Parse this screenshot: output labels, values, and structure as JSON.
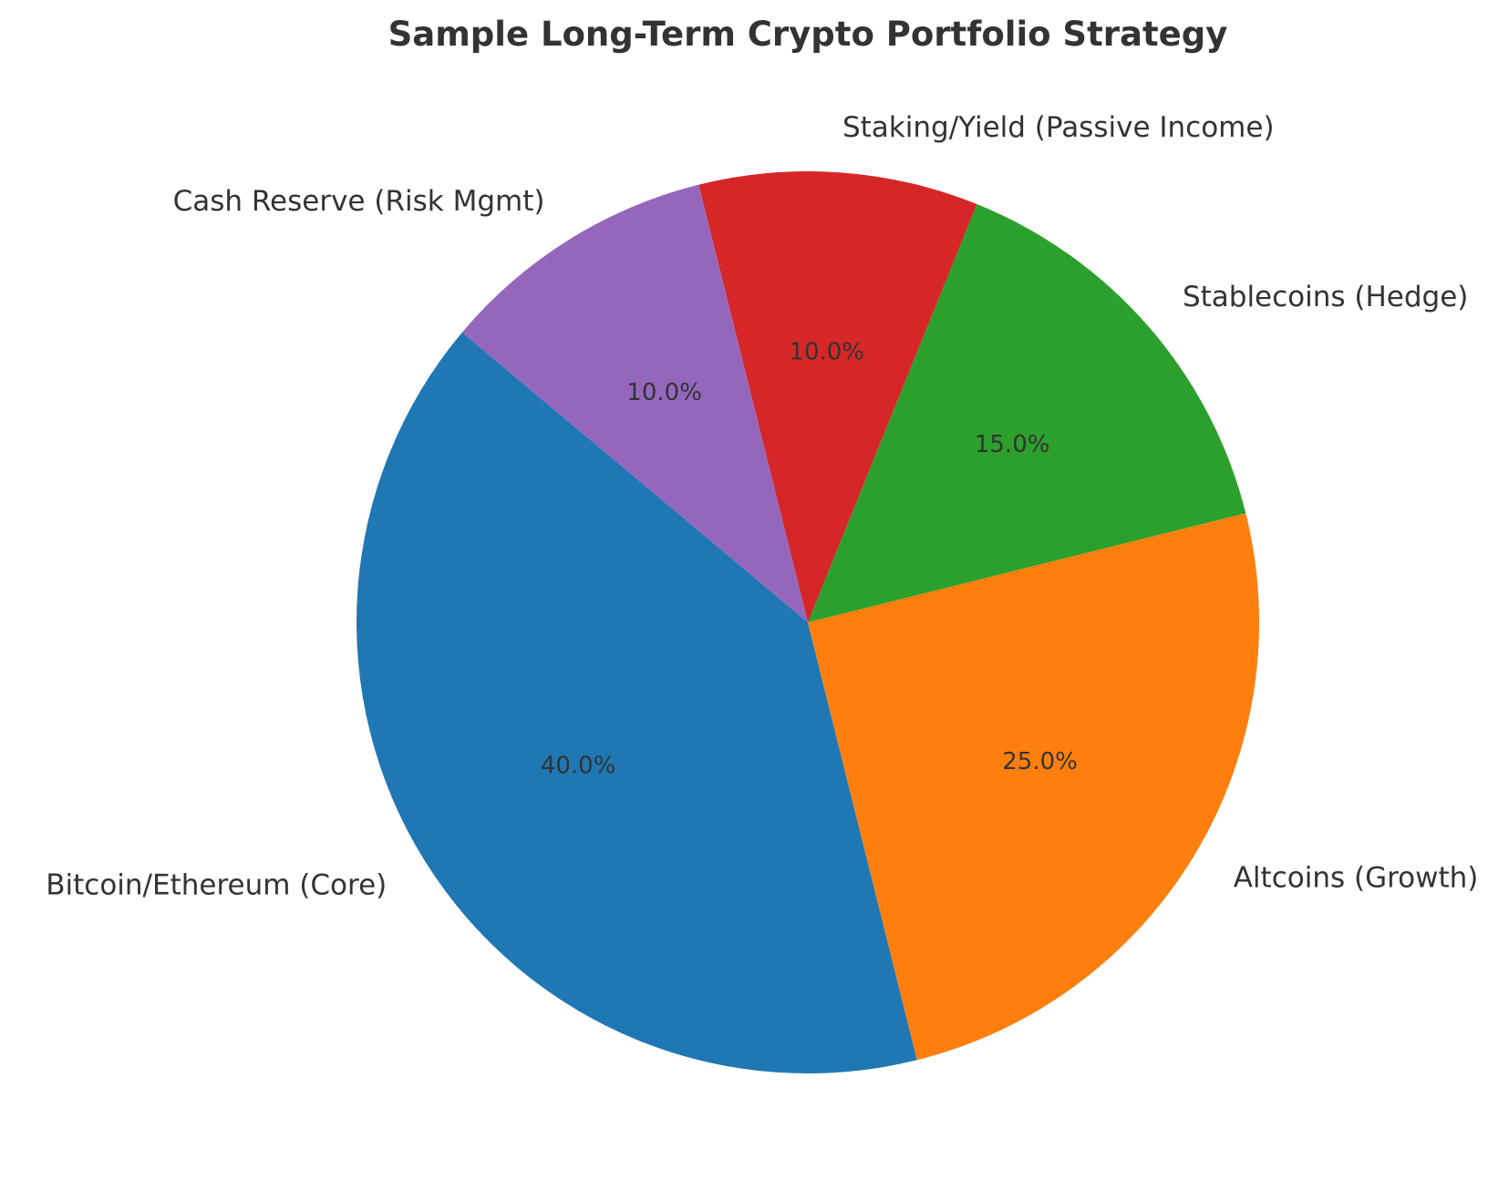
{
  "chart_data": {
    "type": "pie",
    "title": "Sample Long-Term Crypto Portfolio Strategy",
    "start_angle_deg": 140,
    "direction": "counterclockwise",
    "slices": [
      {
        "label": "Bitcoin/Ethereum (Core)",
        "value": 40,
        "pct_label": "40.0%",
        "color": "#1f77b4"
      },
      {
        "label": "Altcoins (Growth)",
        "value": 25,
        "pct_label": "25.0%",
        "color": "#ff7f0e"
      },
      {
        "label": "Stablecoins (Hedge)",
        "value": 15,
        "pct_label": "15.0%",
        "color": "#2ca02c"
      },
      {
        "label": "Staking/Yield (Passive Income)",
        "value": 10,
        "pct_label": "10.0%",
        "color": "#d62728"
      },
      {
        "label": "Cash Reserve (Risk Mgmt)",
        "value": 10,
        "pct_label": "10.0%",
        "color": "#9467bd"
      }
    ]
  }
}
